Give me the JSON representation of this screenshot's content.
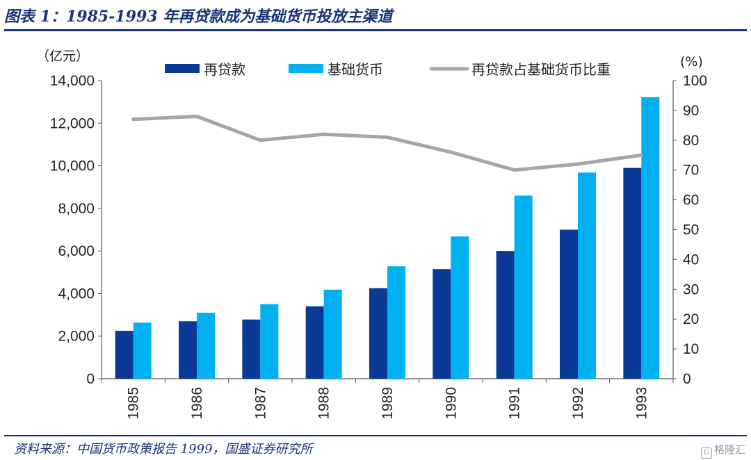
{
  "header": {
    "title": "图表 1：1985-1993 年再贷款成为基础货币投放主渠道"
  },
  "footer": {
    "source": "资料来源：中国货币政策报告 1999，国盛证券研究所",
    "watermark_icon": "gelonghui-logo-icon",
    "watermark": "格隆汇"
  },
  "chart_data": {
    "type": "bar",
    "categories": [
      "1985",
      "1986",
      "1987",
      "1988",
      "1989",
      "1990",
      "1991",
      "1992",
      "1993"
    ],
    "series": [
      {
        "name": "再贷款",
        "type": "bar",
        "axis": "left",
        "color": "#0b3a96",
        "values": [
          2250,
          2700,
          2780,
          3400,
          4250,
          5150,
          6000,
          7000,
          9900
        ]
      },
      {
        "name": "基础货币",
        "type": "bar",
        "axis": "left",
        "color": "#00b0f0",
        "values": [
          2630,
          3100,
          3500,
          4180,
          5280,
          6680,
          8600,
          9680,
          13220
        ]
      },
      {
        "name": "再贷款占基础货币比重",
        "type": "line",
        "axis": "right",
        "color": "#a6a6a6",
        "values": [
          87,
          88,
          80,
          82,
          81,
          76,
          70,
          72,
          75
        ]
      }
    ],
    "left_axis": {
      "unit": "（亿元）",
      "range": [
        0,
        14000
      ],
      "ticks": [
        0,
        2000,
        4000,
        6000,
        8000,
        10000,
        12000,
        14000
      ],
      "tick_labels": [
        "0",
        "2,000",
        "4,000",
        "6,000",
        "8,000",
        "10,000",
        "12,000",
        "14,000"
      ]
    },
    "right_axis": {
      "unit": "(%)",
      "range": [
        0,
        100
      ],
      "ticks": [
        0,
        10,
        20,
        30,
        40,
        50,
        60,
        70,
        80,
        90,
        100
      ],
      "tick_labels": [
        "0",
        "10",
        "20",
        "30",
        "40",
        "50",
        "60",
        "70",
        "80",
        "90",
        "100"
      ]
    },
    "legend_position": "top",
    "grid": false
  }
}
